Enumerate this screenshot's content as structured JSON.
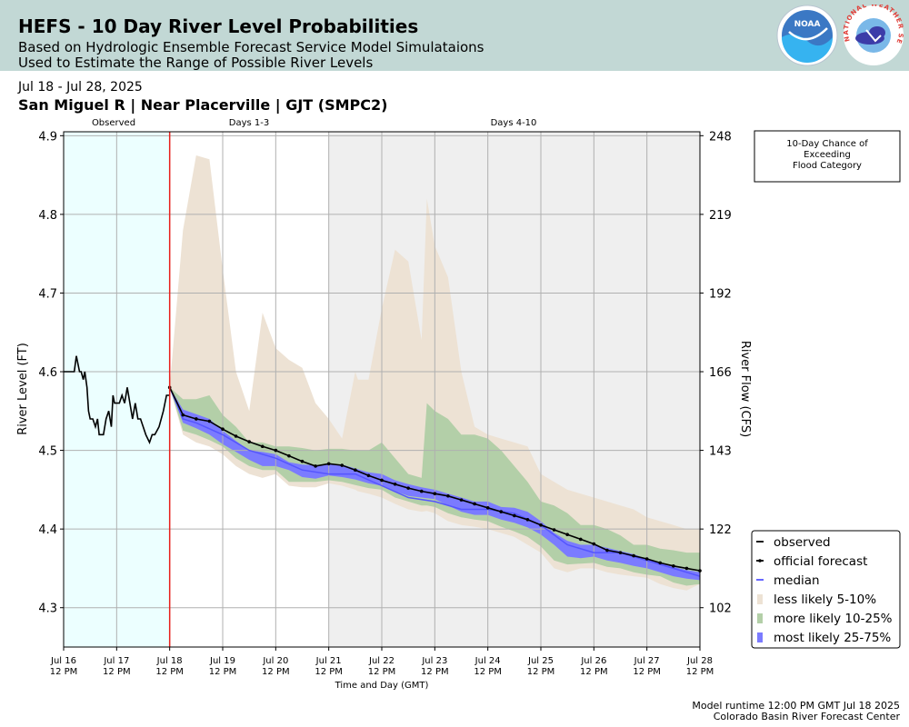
{
  "header": {
    "title": "HEFS - 10 Day River Level Probabilities",
    "subtitle_line1": "Based on Hydrologic Ensemble Forecast Service Model Simulataions",
    "subtitle_line2": "Used to Estimate the Range of Possible River Levels",
    "noaa_logo_text": "NOAA",
    "nws_logo_text": "NATIONAL WEATHER SERVICE",
    "header_bg_color": "#c2d8d5"
  },
  "date_range": "Jul 18 - Jul 28, 2025",
  "station": "San Miguel R | Near Placerville | GJT (SMPC2)",
  "period_labels": {
    "observed": "Observed",
    "days_1_3": "Days 1-3",
    "days_4_10": "Days 4-10"
  },
  "flood_box": {
    "line1": "10-Day Chance of",
    "line2": "Exceeding",
    "line3": "Flood Category"
  },
  "footer": {
    "runtime": "Model runtime 12:00 PM GMT Jul 18 2025",
    "center": "Colorado Basin River Forecast Center"
  },
  "chart_data": {
    "type": "area",
    "xlabel": "Time and Day (GMT)",
    "ylabel": "River Level (FT)",
    "y2label": "River Flow (CFS)",
    "x_unit": "days since Jul 16 12 PM GMT",
    "xlim": [
      0,
      12
    ],
    "ylim": [
      4.25,
      4.905
    ],
    "grid": true,
    "legend_position": "lower-right",
    "forecast_start_x": 2,
    "x_ticks": [
      {
        "x": 0,
        "label1": "Jul 16",
        "label2": "12 PM"
      },
      {
        "x": 1,
        "label1": "Jul 17",
        "label2": "12 PM"
      },
      {
        "x": 2,
        "label1": "Jul 18",
        "label2": "12 PM"
      },
      {
        "x": 3,
        "label1": "Jul 19",
        "label2": "12 PM"
      },
      {
        "x": 4,
        "label1": "Jul 20",
        "label2": "12 PM"
      },
      {
        "x": 5,
        "label1": "Jul 21",
        "label2": "12 PM"
      },
      {
        "x": 6,
        "label1": "Jul 22",
        "label2": "12 PM"
      },
      {
        "x": 7,
        "label1": "Jul 23",
        "label2": "12 PM"
      },
      {
        "x": 8,
        "label1": "Jul 24",
        "label2": "12 PM"
      },
      {
        "x": 9,
        "label1": "Jul 25",
        "label2": "12 PM"
      },
      {
        "x": 10,
        "label1": "Jul 26",
        "label2": "12 PM"
      },
      {
        "x": 11,
        "label1": "Jul 27",
        "label2": "12 PM"
      },
      {
        "x": 12,
        "label1": "Jul 28",
        "label2": "12 PM"
      }
    ],
    "y_ticks": [
      "4.3",
      "4.4",
      "4.5",
      "4.6",
      "4.7",
      "4.8",
      "4.9"
    ],
    "y2_ticks": [
      {
        "stage": 4.3,
        "label": "102"
      },
      {
        "stage": 4.4,
        "label": "122"
      },
      {
        "stage": 4.5,
        "label": "143"
      },
      {
        "stage": 4.6,
        "label": "166"
      },
      {
        "stage": 4.7,
        "label": "192"
      },
      {
        "stage": 4.8,
        "label": "219"
      },
      {
        "stage": 4.9,
        "label": "248"
      }
    ],
    "legend": [
      {
        "label": "observed",
        "kind": "line",
        "color": "#000000"
      },
      {
        "label": "official forecast",
        "kind": "line-dot",
        "color": "#000000"
      },
      {
        "label": "median",
        "kind": "line",
        "color": "#5555ff"
      },
      {
        "label": "less likely 5-10%",
        "kind": "patch",
        "color": "#ede2d4"
      },
      {
        "label": "more likely 10-25%",
        "kind": "patch",
        "color": "#b3cfa8"
      },
      {
        "label": "most likely 25-75%",
        "kind": "patch",
        "color": "#7b7bff"
      }
    ],
    "colors": {
      "observed_shade": "#ecffff",
      "forecast_far_shade": "#efefef",
      "forecast_start_line": "#e8201c",
      "band_5_10": "#ede2d4",
      "band_10_25": "#b3cfa8",
      "band_25_75": "#7b7bff",
      "median": "#5555ff"
    },
    "series": [
      {
        "name": "observed",
        "x": [
          0,
          0.2,
          0.24,
          0.3,
          0.33,
          0.37,
          0.4,
          0.44,
          0.47,
          0.5,
          0.55,
          0.6,
          0.64,
          0.67,
          0.7,
          0.75,
          0.8,
          0.85,
          0.9,
          0.93,
          0.96,
          1.0,
          1.05,
          1.1,
          1.15,
          1.2,
          1.25,
          1.3,
          1.35,
          1.4,
          1.45,
          1.5,
          1.55,
          1.62,
          1.67,
          1.72,
          1.8,
          1.88,
          1.94,
          2.0
        ],
        "y": [
          4.6,
          4.6,
          4.62,
          4.6,
          4.6,
          4.59,
          4.6,
          4.58,
          4.55,
          4.54,
          4.54,
          4.53,
          4.54,
          4.52,
          4.52,
          4.52,
          4.54,
          4.55,
          4.53,
          4.57,
          4.56,
          4.56,
          4.56,
          4.57,
          4.56,
          4.58,
          4.56,
          4.54,
          4.56,
          4.54,
          4.54,
          4.53,
          4.52,
          4.51,
          4.52,
          4.52,
          4.53,
          4.55,
          4.57,
          4.57
        ]
      },
      {
        "name": "official forecast",
        "x": [
          2.0,
          2.25,
          2.5,
          2.75,
          3.0,
          3.25,
          3.5,
          3.75,
          4.0,
          4.25,
          4.5,
          4.75,
          5.0,
          5.25,
          5.5,
          5.75,
          6.0,
          6.25,
          6.5,
          6.75,
          7.0,
          7.25,
          7.5,
          7.75,
          8.0,
          8.25,
          8.5,
          8.75,
          9.0,
          9.25,
          9.5,
          9.75,
          10.0,
          10.25,
          10.5,
          10.75,
          11.0,
          11.25,
          11.5,
          11.75,
          12.0
        ],
        "y": [
          4.58,
          4.545,
          4.54,
          4.537,
          4.527,
          4.518,
          4.511,
          4.505,
          4.5,
          4.493,
          4.486,
          4.48,
          4.483,
          4.481,
          4.475,
          4.468,
          4.462,
          4.457,
          4.452,
          4.448,
          4.445,
          4.442,
          4.437,
          4.432,
          4.427,
          4.422,
          4.417,
          4.412,
          4.405,
          4.399,
          4.393,
          4.387,
          4.381,
          4.373,
          4.37,
          4.366,
          4.362,
          4.357,
          4.353,
          4.35,
          4.347
        ]
      },
      {
        "name": "median",
        "x": [
          2.0,
          2.25,
          2.5,
          3.0,
          3.5,
          4.0,
          4.5,
          5.0,
          5.5,
          6.0,
          6.5,
          7.0,
          7.5,
          8.0,
          8.5,
          9.0,
          9.5,
          10.0,
          10.5,
          11.0,
          11.5,
          12.0
        ],
        "y": [
          4.58,
          4.54,
          4.535,
          4.52,
          4.5,
          4.49,
          4.475,
          4.47,
          4.47,
          4.455,
          4.44,
          4.435,
          4.425,
          4.425,
          4.42,
          4.405,
          4.38,
          4.37,
          4.37,
          4.36,
          4.35,
          4.34
        ]
      },
      {
        "name": "less likely 5-10%",
        "x": [
          2.0,
          2.25,
          2.5,
          2.75,
          3.0,
          3.25,
          3.5,
          3.75,
          4.0,
          4.25,
          4.5,
          4.75,
          5.0,
          5.25,
          5.5,
          5.55,
          5.75,
          6.0,
          6.25,
          6.5,
          6.75,
          6.85,
          7.0,
          7.25,
          7.5,
          7.75,
          8.0,
          8.25,
          8.5,
          8.75,
          9.0,
          9.25,
          9.5,
          9.75,
          10.0,
          10.25,
          10.5,
          10.75,
          11.0,
          11.25,
          11.5,
          11.75,
          12.0
        ],
        "low": [
          4.58,
          4.52,
          4.51,
          4.505,
          4.495,
          4.48,
          4.47,
          4.465,
          4.47,
          4.455,
          4.453,
          4.453,
          4.458,
          4.455,
          4.45,
          4.448,
          4.445,
          4.44,
          4.432,
          4.425,
          4.422,
          4.423,
          4.42,
          4.41,
          4.405,
          4.403,
          4.4,
          4.395,
          4.39,
          4.38,
          4.37,
          4.35,
          4.345,
          4.35,
          4.35,
          4.345,
          4.342,
          4.34,
          4.338,
          4.33,
          4.325,
          4.322,
          4.33
        ],
        "high": [
          4.58,
          4.78,
          4.875,
          4.87,
          4.73,
          4.6,
          4.55,
          4.675,
          4.63,
          4.615,
          4.605,
          4.56,
          4.54,
          4.515,
          4.6,
          4.59,
          4.59,
          4.68,
          4.755,
          4.74,
          4.64,
          4.82,
          4.76,
          4.72,
          4.6,
          4.53,
          4.52,
          4.515,
          4.51,
          4.505,
          4.47,
          4.46,
          4.45,
          4.445,
          4.44,
          4.435,
          4.43,
          4.425,
          4.415,
          4.41,
          4.405,
          4.4,
          4.4
        ]
      },
      {
        "name": "more likely 10-25%",
        "x": [
          2.0,
          2.25,
          2.5,
          2.75,
          3.0,
          3.25,
          3.5,
          3.75,
          4.0,
          4.25,
          4.5,
          4.75,
          5.0,
          5.25,
          5.5,
          5.75,
          6.0,
          6.25,
          6.5,
          6.75,
          6.85,
          7.0,
          7.25,
          7.5,
          7.75,
          8.0,
          8.25,
          8.5,
          8.75,
          9.0,
          9.25,
          9.5,
          9.75,
          10.0,
          10.25,
          10.5,
          10.75,
          11.0,
          11.25,
          11.5,
          11.75,
          12.0
        ],
        "low": [
          4.58,
          4.525,
          4.52,
          4.513,
          4.505,
          4.49,
          4.48,
          4.475,
          4.475,
          4.46,
          4.46,
          4.46,
          4.462,
          4.46,
          4.456,
          4.452,
          4.45,
          4.44,
          4.435,
          4.43,
          4.43,
          4.428,
          4.42,
          4.415,
          4.412,
          4.41,
          4.403,
          4.397,
          4.39,
          4.378,
          4.36,
          4.355,
          4.356,
          4.357,
          4.352,
          4.35,
          4.345,
          4.342,
          4.34,
          4.332,
          4.328,
          4.33
        ],
        "high": [
          4.58,
          4.565,
          4.565,
          4.57,
          4.545,
          4.53,
          4.51,
          4.51,
          4.505,
          4.505,
          4.503,
          4.5,
          4.502,
          4.502,
          4.5,
          4.5,
          4.51,
          4.49,
          4.47,
          4.465,
          4.56,
          4.55,
          4.54,
          4.52,
          4.52,
          4.515,
          4.5,
          4.48,
          4.46,
          4.435,
          4.43,
          4.42,
          4.405,
          4.405,
          4.4,
          4.392,
          4.38,
          4.38,
          4.375,
          4.373,
          4.37,
          4.37
        ]
      },
      {
        "name": "most likely 25-75%",
        "x": [
          2.0,
          2.25,
          2.5,
          2.75,
          3.0,
          3.25,
          3.5,
          3.75,
          4.0,
          4.25,
          4.5,
          4.75,
          5.0,
          5.25,
          5.5,
          5.75,
          6.0,
          6.25,
          6.5,
          6.75,
          7.0,
          7.25,
          7.5,
          7.75,
          8.0,
          8.25,
          8.5,
          8.75,
          9.0,
          9.25,
          9.5,
          9.75,
          10.0,
          10.25,
          10.5,
          10.75,
          11.0,
          11.25,
          11.5,
          11.75,
          12.0
        ],
        "low": [
          4.58,
          4.535,
          4.528,
          4.52,
          4.508,
          4.498,
          4.488,
          4.48,
          4.48,
          4.475,
          4.466,
          4.464,
          4.468,
          4.466,
          4.463,
          4.458,
          4.455,
          4.448,
          4.442,
          4.44,
          4.438,
          4.43,
          4.422,
          4.418,
          4.418,
          4.412,
          4.408,
          4.402,
          4.393,
          4.38,
          4.365,
          4.363,
          4.365,
          4.36,
          4.357,
          4.353,
          4.35,
          4.345,
          4.34,
          4.337,
          4.335
        ],
        "high": [
          4.58,
          4.552,
          4.546,
          4.54,
          4.525,
          4.512,
          4.5,
          4.498,
          4.495,
          4.485,
          4.482,
          4.481,
          4.483,
          4.482,
          4.477,
          4.472,
          4.47,
          4.462,
          4.457,
          4.453,
          4.45,
          4.445,
          4.44,
          4.435,
          4.435,
          4.428,
          4.427,
          4.422,
          4.41,
          4.395,
          4.385,
          4.38,
          4.38,
          4.376,
          4.372,
          4.368,
          4.362,
          4.357,
          4.352,
          4.348,
          4.345
        ]
      }
    ]
  }
}
